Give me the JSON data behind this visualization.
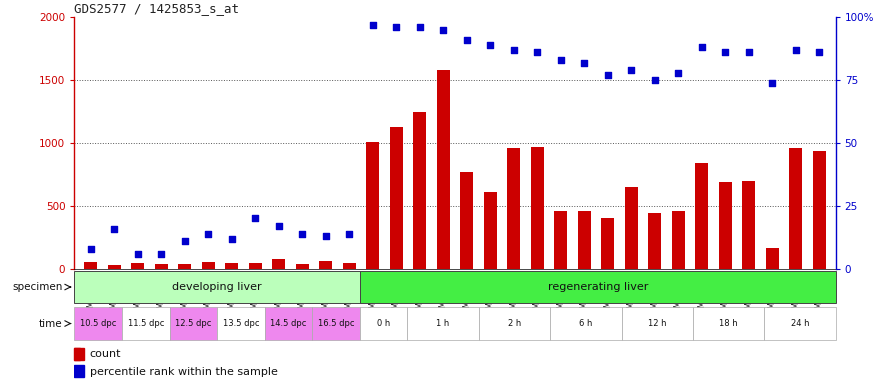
{
  "title": "GDS2577 / 1425853_s_at",
  "gsm_labels": [
    "GSM161128",
    "GSM161129",
    "GSM161130",
    "GSM161131",
    "GSM161132",
    "GSM161133",
    "GSM161134",
    "GSM161135",
    "GSM161136",
    "GSM161137",
    "GSM161138",
    "GSM161139",
    "GSM161108",
    "GSM161109",
    "GSM161110",
    "GSM161111",
    "GSM161112",
    "GSM161113",
    "GSM161114",
    "GSM161115",
    "GSM161116",
    "GSM161117",
    "GSM161118",
    "GSM161119",
    "GSM161120",
    "GSM161121",
    "GSM161122",
    "GSM161123",
    "GSM161124",
    "GSM161125",
    "GSM161126",
    "GSM161127"
  ],
  "count_values": [
    55,
    30,
    50,
    40,
    35,
    55,
    50,
    45,
    75,
    40,
    65,
    50,
    1005,
    1130,
    1250,
    1580,
    770,
    610,
    960,
    970,
    460,
    460,
    405,
    650,
    440,
    460,
    840,
    690,
    700,
    165,
    960,
    940
  ],
  "percentile_values": [
    8,
    16,
    6,
    6,
    11,
    14,
    12,
    20,
    17,
    14,
    13,
    14,
    97,
    96,
    96,
    95,
    91,
    89,
    87,
    86,
    83,
    82,
    77,
    79,
    75,
    78,
    88,
    86,
    86,
    74,
    87,
    86
  ],
  "bar_color": "#cc0000",
  "dot_color": "#0000cc",
  "ylim_left": [
    0,
    2000
  ],
  "ylim_right": [
    0,
    100
  ],
  "yticks_left": [
    0,
    500,
    1000,
    1500,
    2000
  ],
  "yticks_right": [
    0,
    25,
    50,
    75,
    100
  ],
  "yticklabels_right": [
    "0",
    "25",
    "50",
    "75",
    "100%"
  ],
  "specimen_groups": [
    {
      "label": "developing liver",
      "color": "#bbffbb",
      "start": 0,
      "end": 12
    },
    {
      "label": "regenerating liver",
      "color": "#44ee44",
      "start": 12,
      "end": 32
    }
  ],
  "time_groups": [
    {
      "label": "10.5 dpc",
      "start": 0,
      "end": 2,
      "color": "#ee88ee"
    },
    {
      "label": "11.5 dpc",
      "start": 2,
      "end": 4,
      "color": "#ffffff"
    },
    {
      "label": "12.5 dpc",
      "start": 4,
      "end": 6,
      "color": "#ee88ee"
    },
    {
      "label": "13.5 dpc",
      "start": 6,
      "end": 8,
      "color": "#ffffff"
    },
    {
      "label": "14.5 dpc",
      "start": 8,
      "end": 10,
      "color": "#ee88ee"
    },
    {
      "label": "16.5 dpc",
      "start": 10,
      "end": 12,
      "color": "#ee88ee"
    },
    {
      "label": "0 h",
      "start": 12,
      "end": 14,
      "color": "#ffffff"
    },
    {
      "label": "1 h",
      "start": 14,
      "end": 17,
      "color": "#ffffff"
    },
    {
      "label": "2 h",
      "start": 17,
      "end": 20,
      "color": "#ffffff"
    },
    {
      "label": "6 h",
      "start": 20,
      "end": 23,
      "color": "#ffffff"
    },
    {
      "label": "12 h",
      "start": 23,
      "end": 26,
      "color": "#ffffff"
    },
    {
      "label": "18 h",
      "start": 26,
      "end": 29,
      "color": "#ffffff"
    },
    {
      "label": "24 h",
      "start": 29,
      "end": 32,
      "color": "#ffffff"
    }
  ],
  "bg_color": "#ffffff",
  "bar_width": 0.55,
  "dot_size": 16
}
